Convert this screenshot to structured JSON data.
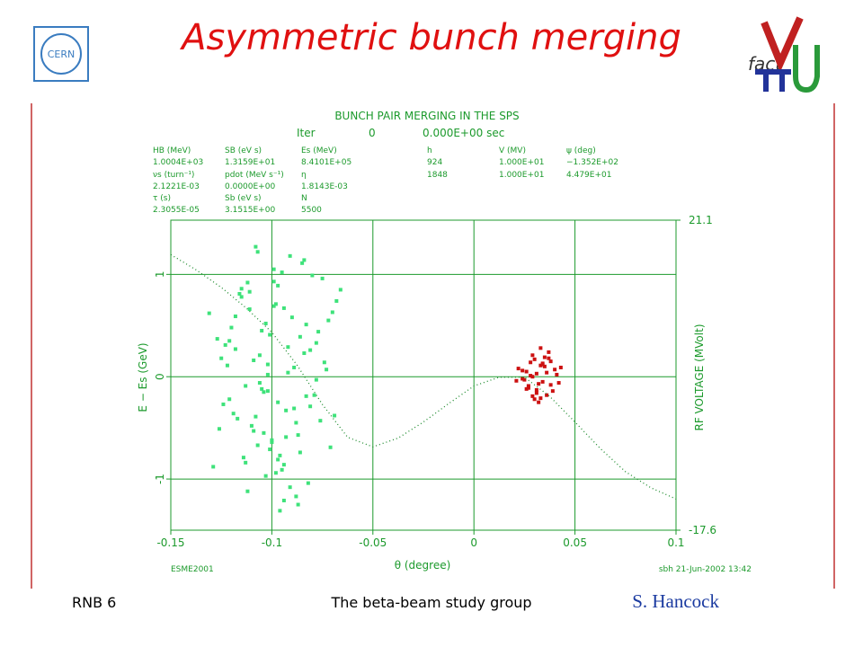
{
  "slide": {
    "title": "Asymmetric bunch merging",
    "footer_left": "RNB 6",
    "footer_center": "The beta-beam study group",
    "author": "S. Hancock",
    "logo_left": "CERN",
    "logo_right": "fact"
  },
  "chart_data": {
    "type": "scatter",
    "title": "BUNCH PAIR MERGING IN THE SPS",
    "iter_label": "Iter",
    "iter_value": "0",
    "time": "0.000E+00 sec",
    "parameters": [
      [
        "HB (MeV)",
        "SB (eV s)",
        "Es (MeV)",
        "h",
        "V (MV)",
        "ψ (deg)"
      ],
      [
        "1.0004E+03",
        "1.3159E+01",
        "8.4101E+05",
        "924",
        "1.000E+01",
        "−1.352E+02"
      ],
      [
        "νs (turn⁻¹)",
        "pdot (MeV s⁻¹)",
        "η",
        "1848",
        "1.000E+01",
        "4.479E+01"
      ],
      [
        "2.1221E-03",
        "0.0000E+00",
        "1.8143E-03"
      ],
      [
        "τ (s)",
        "Sb (eV s)",
        "N"
      ],
      [
        "2.3055E-05",
        "3.1515E+00",
        "5500"
      ]
    ],
    "x_label": "θ (degree)",
    "y_label": "E − Es (GeV)",
    "y2_label": "RF VOLTAGE (MVolt)",
    "note_left": "ESME2001",
    "note_right": "sbh 21-Jun-2002 13:42",
    "xlim": [
      -0.15,
      0.1
    ],
    "xticks": [
      -0.15,
      -0.1,
      -0.05,
      0,
      0.05,
      0.1
    ],
    "ylim": [
      -1.5,
      1.53
    ],
    "yticks": [
      -1,
      0,
      1
    ],
    "y2lim": [
      -17.6,
      21.1
    ],
    "y2ticks": [
      -17.6,
      21.1
    ],
    "grid": true,
    "series": [
      {
        "type": "scatter",
        "color": "#3ee27a",
        "x": [
          -0.102,
          -0.088,
          -0.115,
          -0.095,
          -0.078,
          -0.121,
          -0.099,
          -0.107,
          -0.083,
          -0.112,
          -0.092,
          -0.131,
          -0.069,
          -0.104,
          -0.097,
          -0.086,
          -0.118,
          -0.075,
          -0.109,
          -0.101,
          -0.094,
          -0.125,
          -0.081,
          -0.098,
          -0.113,
          -0.072,
          -0.106,
          -0.091,
          -0.117,
          -0.084,
          -0.1,
          -0.127,
          -0.066,
          -0.103,
          -0.089,
          -0.111,
          -0.079,
          -0.096,
          -0.12,
          -0.087,
          -0.108,
          -0.093,
          -0.074,
          -0.114,
          -0.099,
          -0.082,
          -0.123,
          -0.105,
          -0.09,
          -0.071,
          -0.116,
          -0.097,
          -0.085,
          -0.11,
          -0.102,
          -0.077,
          -0.129,
          -0.094,
          -0.088,
          -0.106,
          -0.119,
          -0.08,
          -0.101,
          -0.092,
          -0.113,
          -0.068,
          -0.104,
          -0.095,
          -0.124,
          -0.086,
          -0.098,
          -0.109,
          -0.076,
          -0.115,
          -0.091,
          -0.103,
          -0.083,
          -0.121,
          -0.096,
          -0.107,
          -0.073,
          -0.1,
          -0.118,
          -0.089,
          -0.112,
          -0.094,
          -0.081,
          -0.126,
          -0.099,
          -0.087,
          -0.105,
          -0.078,
          -0.111,
          -0.093,
          -0.122,
          -0.097,
          -0.084,
          -0.108,
          -0.07,
          -0.102
        ],
        "values": [
          0.12,
          -0.45,
          0.78,
          -0.91,
          0.33,
          -0.22,
          1.05,
          -0.67,
          0.51,
          -1.12,
          0.04,
          0.62,
          -0.38,
          -0.15,
          0.89,
          -0.74,
          0.27,
          0.96,
          -0.53,
          0.41,
          -1.21,
          0.18,
          -0.29,
          0.71,
          -0.84,
          0.55,
          -0.06,
          1.18,
          -0.41,
          0.23,
          -0.62,
          0.37,
          0.85,
          -0.97,
          0.09,
          0.66,
          -0.18,
          -1.31,
          0.48,
          -0.57,
          1.27,
          -0.33,
          0.14,
          -0.79,
          0.93,
          -1.04,
          0.31,
          -0.12,
          0.58,
          -0.69,
          0.81,
          -0.25,
          1.11,
          -0.48,
          0.02,
          0.44,
          -0.88,
          0.67,
          -1.17,
          0.21,
          -0.36,
          0.99,
          -0.71,
          0.29,
          -0.09,
          0.74,
          -0.55,
          1.02,
          -0.27,
          0.39,
          -0.94,
          0.16,
          -0.43,
          0.86,
          -1.08,
          0.52,
          -0.19,
          0.35,
          -0.77,
          1.22,
          0.07,
          -0.64,
          0.59,
          -0.31,
          0.92,
          -0.86,
          0.26,
          -0.51,
          0.69,
          -1.25,
          0.45,
          -0.03,
          0.83,
          -0.59,
          0.11,
          -0.81,
          1.14,
          -0.39,
          0.63,
          -0.14
        ]
      },
      {
        "type": "scatter",
        "color": "#cc1111",
        "x": [
          0.031,
          0.026,
          0.038,
          0.034,
          0.022,
          0.029,
          0.036,
          0.041,
          0.027,
          0.033,
          0.03,
          0.024,
          0.039,
          0.035,
          0.028,
          0.032,
          0.043,
          0.025,
          0.037,
          0.031,
          0.034,
          0.021,
          0.029,
          0.04,
          0.033,
          0.027,
          0.036,
          0.03,
          0.038,
          0.024,
          0.032,
          0.035,
          0.028,
          0.042,
          0.031,
          0.026,
          0.037,
          0.033,
          0.029,
          0.034
        ],
        "values": [
          0.03,
          -0.12,
          0.15,
          -0.05,
          0.08,
          0.21,
          -0.18,
          0.02,
          -0.09,
          0.11,
          -0.22,
          0.06,
          -0.14,
          0.19,
          0.01,
          -0.07,
          0.09,
          -0.03,
          0.24,
          -0.16,
          0.13,
          -0.04,
          -0.19,
          0.07,
          0.28,
          -0.11,
          0.04,
          0.17,
          -0.08,
          -0.02,
          -0.25,
          0.1,
          0.14,
          -0.06,
          -0.13,
          0.05,
          0.18,
          -0.21,
          0.0,
          0.12
        ]
      },
      {
        "type": "line",
        "axis": "y2",
        "color": "#1c8a2c",
        "x": [
          -0.15,
          -0.1375,
          -0.125,
          -0.1125,
          -0.1,
          -0.0875,
          -0.075,
          -0.0625,
          -0.05,
          -0.0375,
          -0.025,
          -0.0125,
          0,
          0.0125,
          0.025,
          0.0375,
          0.05,
          0.0625,
          0.075,
          0.0875,
          0.1
        ],
        "values": [
          16.8,
          14.9,
          12.7,
          10.1,
          7.1,
          3.0,
          -1.9,
          -6.0,
          -7.2,
          -6.1,
          -4.1,
          -1.8,
          0.4,
          1.5,
          1.5,
          -0.9,
          -4.1,
          -7.4,
          -10.3,
          -12.3,
          -13.7
        ]
      }
    ]
  }
}
